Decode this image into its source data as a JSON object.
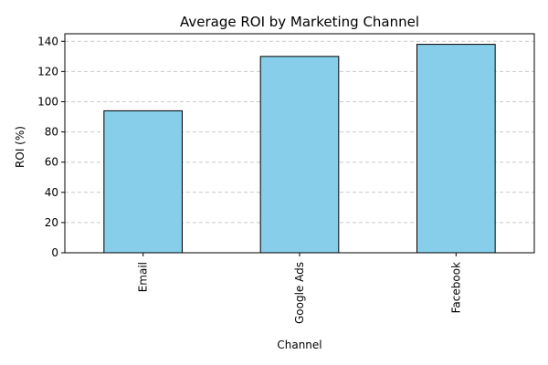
{
  "chart_data": {
    "type": "bar",
    "title": "Average ROI by Marketing Channel",
    "xlabel": "Channel",
    "ylabel": "ROI (%)",
    "categories": [
      "Email",
      "Google Ads",
      "Facebook"
    ],
    "values": [
      94,
      130,
      138
    ],
    "ylim": [
      0,
      145
    ],
    "yticks": [
      0,
      20,
      40,
      60,
      80,
      100,
      120,
      140
    ],
    "grid": "y-dashed",
    "bar_color": "#87CEEB",
    "bar_edge_color": "#000000",
    "grid_color": "#c8c8c8"
  }
}
